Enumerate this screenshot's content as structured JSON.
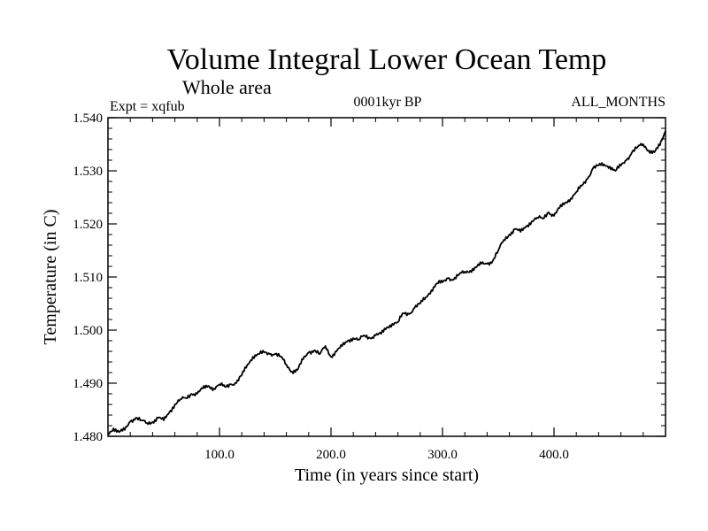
{
  "chart_data": {
    "type": "line",
    "title": "Volume Integral Lower Ocean Temp",
    "subtitle": "Whole area",
    "left_label": "Expt = xqfub",
    "center_label": "0001kyr BP",
    "right_label": "ALL_MONTHS",
    "xlabel": "Time (in years since start)",
    "ylabel": "Temperature (in C)",
    "xlim": [
      0,
      500
    ],
    "ylim": [
      1.48,
      1.54
    ],
    "xticks": [
      100,
      200,
      300,
      400
    ],
    "xtick_labels": [
      "100.0",
      "200.0",
      "300.0",
      "400.0"
    ],
    "yticks": [
      1.48,
      1.49,
      1.5,
      1.51,
      1.52,
      1.53,
      1.54
    ],
    "ytick_labels": [
      "1.480",
      "1.490",
      "1.500",
      "1.510",
      "1.520",
      "1.530",
      "1.540"
    ],
    "series": [
      {
        "name": "xqfub",
        "color": "#000000",
        "x": [
          0,
          5,
          10,
          15,
          20,
          25,
          30,
          35,
          40,
          45,
          50,
          55,
          60,
          65,
          70,
          75,
          80,
          85,
          90,
          95,
          100,
          105,
          110,
          115,
          120,
          125,
          130,
          135,
          140,
          145,
          150,
          155,
          160,
          165,
          170,
          175,
          180,
          185,
          190,
          195,
          200,
          205,
          210,
          215,
          220,
          225,
          230,
          235,
          240,
          245,
          250,
          255,
          260,
          265,
          270,
          275,
          280,
          285,
          290,
          295,
          300,
          305,
          310,
          315,
          320,
          325,
          330,
          335,
          340,
          345,
          350,
          355,
          360,
          365,
          370,
          375,
          380,
          385,
          390,
          395,
          400,
          405,
          410,
          415,
          420,
          425,
          430,
          435,
          440,
          445,
          450,
          455,
          460,
          465,
          470,
          475,
          480,
          485,
          490,
          495,
          500
        ],
        "values": [
          1.4805,
          1.4815,
          1.4808,
          1.4812,
          1.4828,
          1.4835,
          1.483,
          1.4825,
          1.4827,
          1.4835,
          1.483,
          1.4845,
          1.486,
          1.487,
          1.4872,
          1.488,
          1.488,
          1.489,
          1.4895,
          1.489,
          1.4898,
          1.4893,
          1.4898,
          1.49,
          1.4915,
          1.4935,
          1.495,
          1.4955,
          1.4958,
          1.4955,
          1.4955,
          1.495,
          1.4935,
          1.4922,
          1.4925,
          1.4945,
          1.4958,
          1.4962,
          1.4955,
          1.497,
          1.495,
          1.496,
          1.497,
          1.498,
          1.4985,
          1.4982,
          1.499,
          1.4985,
          1.499,
          1.4993,
          1.5005,
          1.5012,
          1.5015,
          1.5032,
          1.503,
          1.5042,
          1.505,
          1.5062,
          1.5075,
          1.5088,
          1.509,
          1.5098,
          1.5095,
          1.5105,
          1.511,
          1.5112,
          1.5118,
          1.5125,
          1.5125,
          1.513,
          1.515,
          1.517,
          1.518,
          1.519,
          1.5185,
          1.5195,
          1.5205,
          1.5212,
          1.521,
          1.5222,
          1.5215,
          1.523,
          1.524,
          1.5248,
          1.526,
          1.5272,
          1.5285,
          1.5305,
          1.531,
          1.5312,
          1.5308,
          1.53,
          1.531,
          1.532,
          1.5335,
          1.5345,
          1.535,
          1.5338,
          1.5335,
          1.5348,
          1.5375
        ]
      }
    ]
  }
}
